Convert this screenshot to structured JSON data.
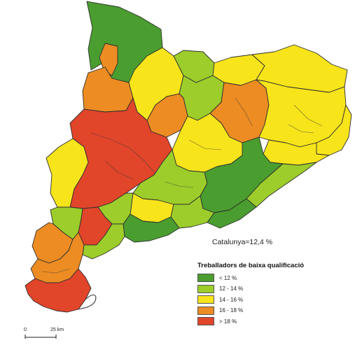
{
  "total_label": "Catalunya=12,4 %",
  "legend": {
    "title": "Treballadors de baixa qualificació",
    "items": [
      {
        "label": "< 12 %",
        "color": "#4a9d2f"
      },
      {
        "label": "12 - 14 %",
        "color": "#9ccd2a"
      },
      {
        "label": "14 - 16 %",
        "color": "#f7e41a"
      },
      {
        "label": "16 - 18 %",
        "color": "#ec8c22"
      },
      {
        "label": "> 18 %",
        "color": "#e1452a"
      }
    ]
  },
  "scale": {
    "start_label": "0",
    "end_label": "25 km"
  }
}
